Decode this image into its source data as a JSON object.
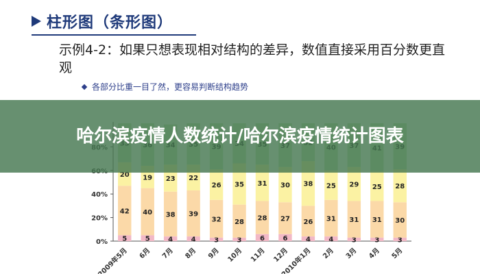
{
  "slide": {
    "heading": "柱形图（条形图）",
    "description": "示例4-2：如果只想表现相对结构的差异，数值直接采用百分数更直观",
    "bullet": "各部分比重一目了然，更容易判断结构趋势"
  },
  "banner": {
    "title": "哈尔滨疫情人数统计/哈尔滨疫情统计图表"
  },
  "colors": {
    "heading": "#1f3a7a",
    "banner": "#467850",
    "seg_bottom": "#f2b8c6",
    "seg_mid": "#fbd9a8",
    "seg_upper": "#fbf2a3",
    "seg_top": "#bfe0b0"
  },
  "chart_data": {
    "type": "bar",
    "stacked": true,
    "categories": [
      "2009年5月",
      "6月",
      "7月",
      "8月",
      "9月",
      "10月",
      "11月",
      "12月",
      "2010年1月",
      "2月",
      "3月",
      "4月",
      "5月"
    ],
    "y_ticks": [
      "0%",
      "20%",
      "40%",
      "60%",
      "80%"
    ],
    "ylim": [
      0,
      100
    ],
    "series": [
      {
        "values": [
          5,
          5,
          4,
          4,
          3,
          3,
          6,
          6,
          4,
          4,
          3,
          3,
          3
        ]
      },
      {
        "values": [
          42,
          40,
          38,
          39,
          32,
          28,
          28,
          27,
          26,
          31,
          31,
          31,
          30
        ]
      },
      {
        "values": [
          20,
          19,
          23,
          22,
          26,
          35,
          31,
          30,
          38,
          25,
          29,
          25,
          28
        ]
      },
      {
        "values": [
          33,
          36,
          34,
          35,
          39,
          34,
          35,
          37,
          32,
          40,
          37,
          41,
          39
        ]
      }
    ]
  }
}
